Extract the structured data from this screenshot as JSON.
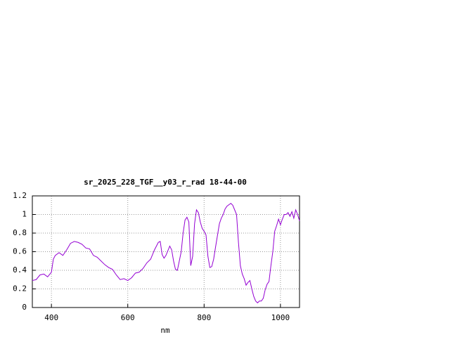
{
  "chart_data": {
    "type": "line",
    "title": "sr_2025_228_TGF__y03_r_rad 18-44-00",
    "x_label": "nm",
    "xlim": [
      350,
      1050
    ],
    "ylim": [
      0,
      1.2
    ],
    "xticks": [
      400,
      600,
      800,
      1000
    ],
    "yticks": [
      0,
      0.2,
      0.4,
      0.6,
      0.8,
      1,
      1.2
    ],
    "grid": true,
    "series": [
      {
        "color": "#9400d3",
        "x": [
          350,
          360,
          370,
          380,
          390,
          400,
          405,
          410,
          420,
          430,
          440,
          450,
          460,
          470,
          480,
          490,
          500,
          510,
          520,
          530,
          540,
          550,
          560,
          570,
          580,
          590,
          600,
          610,
          620,
          630,
          640,
          650,
          660,
          670,
          680,
          685,
          690,
          695,
          700,
          710,
          715,
          720,
          725,
          730,
          740,
          745,
          750,
          755,
          760,
          765,
          770,
          775,
          780,
          785,
          790,
          795,
          800,
          805,
          810,
          815,
          820,
          825,
          830,
          840,
          845,
          850,
          855,
          860,
          870,
          875,
          880,
          885,
          890,
          895,
          900,
          905,
          910,
          915,
          920,
          925,
          930,
          935,
          940,
          945,
          950,
          955,
          960,
          965,
          970,
          975,
          980,
          985,
          990,
          995,
          1000,
          1005,
          1010,
          1015,
          1020,
          1025,
          1030,
          1035,
          1040,
          1045,
          1050
        ],
        "values": [
          0.29,
          0.3,
          0.35,
          0.36,
          0.33,
          0.38,
          0.52,
          0.56,
          0.59,
          0.56,
          0.62,
          0.69,
          0.71,
          0.7,
          0.68,
          0.64,
          0.63,
          0.56,
          0.54,
          0.5,
          0.46,
          0.43,
          0.41,
          0.35,
          0.3,
          0.31,
          0.29,
          0.32,
          0.37,
          0.38,
          0.42,
          0.48,
          0.52,
          0.62,
          0.7,
          0.71,
          0.57,
          0.53,
          0.56,
          0.66,
          0.62,
          0.5,
          0.41,
          0.4,
          0.6,
          0.8,
          0.94,
          0.97,
          0.92,
          0.45,
          0.55,
          0.9,
          1.05,
          1.02,
          0.92,
          0.85,
          0.82,
          0.78,
          0.55,
          0.43,
          0.44,
          0.52,
          0.65,
          0.9,
          0.96,
          1.0,
          1.06,
          1.09,
          1.12,
          1.1,
          1.05,
          1.0,
          0.7,
          0.45,
          0.36,
          0.31,
          0.24,
          0.27,
          0.29,
          0.2,
          0.12,
          0.07,
          0.05,
          0.07,
          0.07,
          0.1,
          0.19,
          0.25,
          0.28,
          0.45,
          0.6,
          0.82,
          0.88,
          0.95,
          0.89,
          0.95,
          1.0,
          1.0,
          1.02,
          0.98,
          1.03,
          0.96,
          1.05,
          1.0,
          0.93
        ]
      }
    ]
  }
}
